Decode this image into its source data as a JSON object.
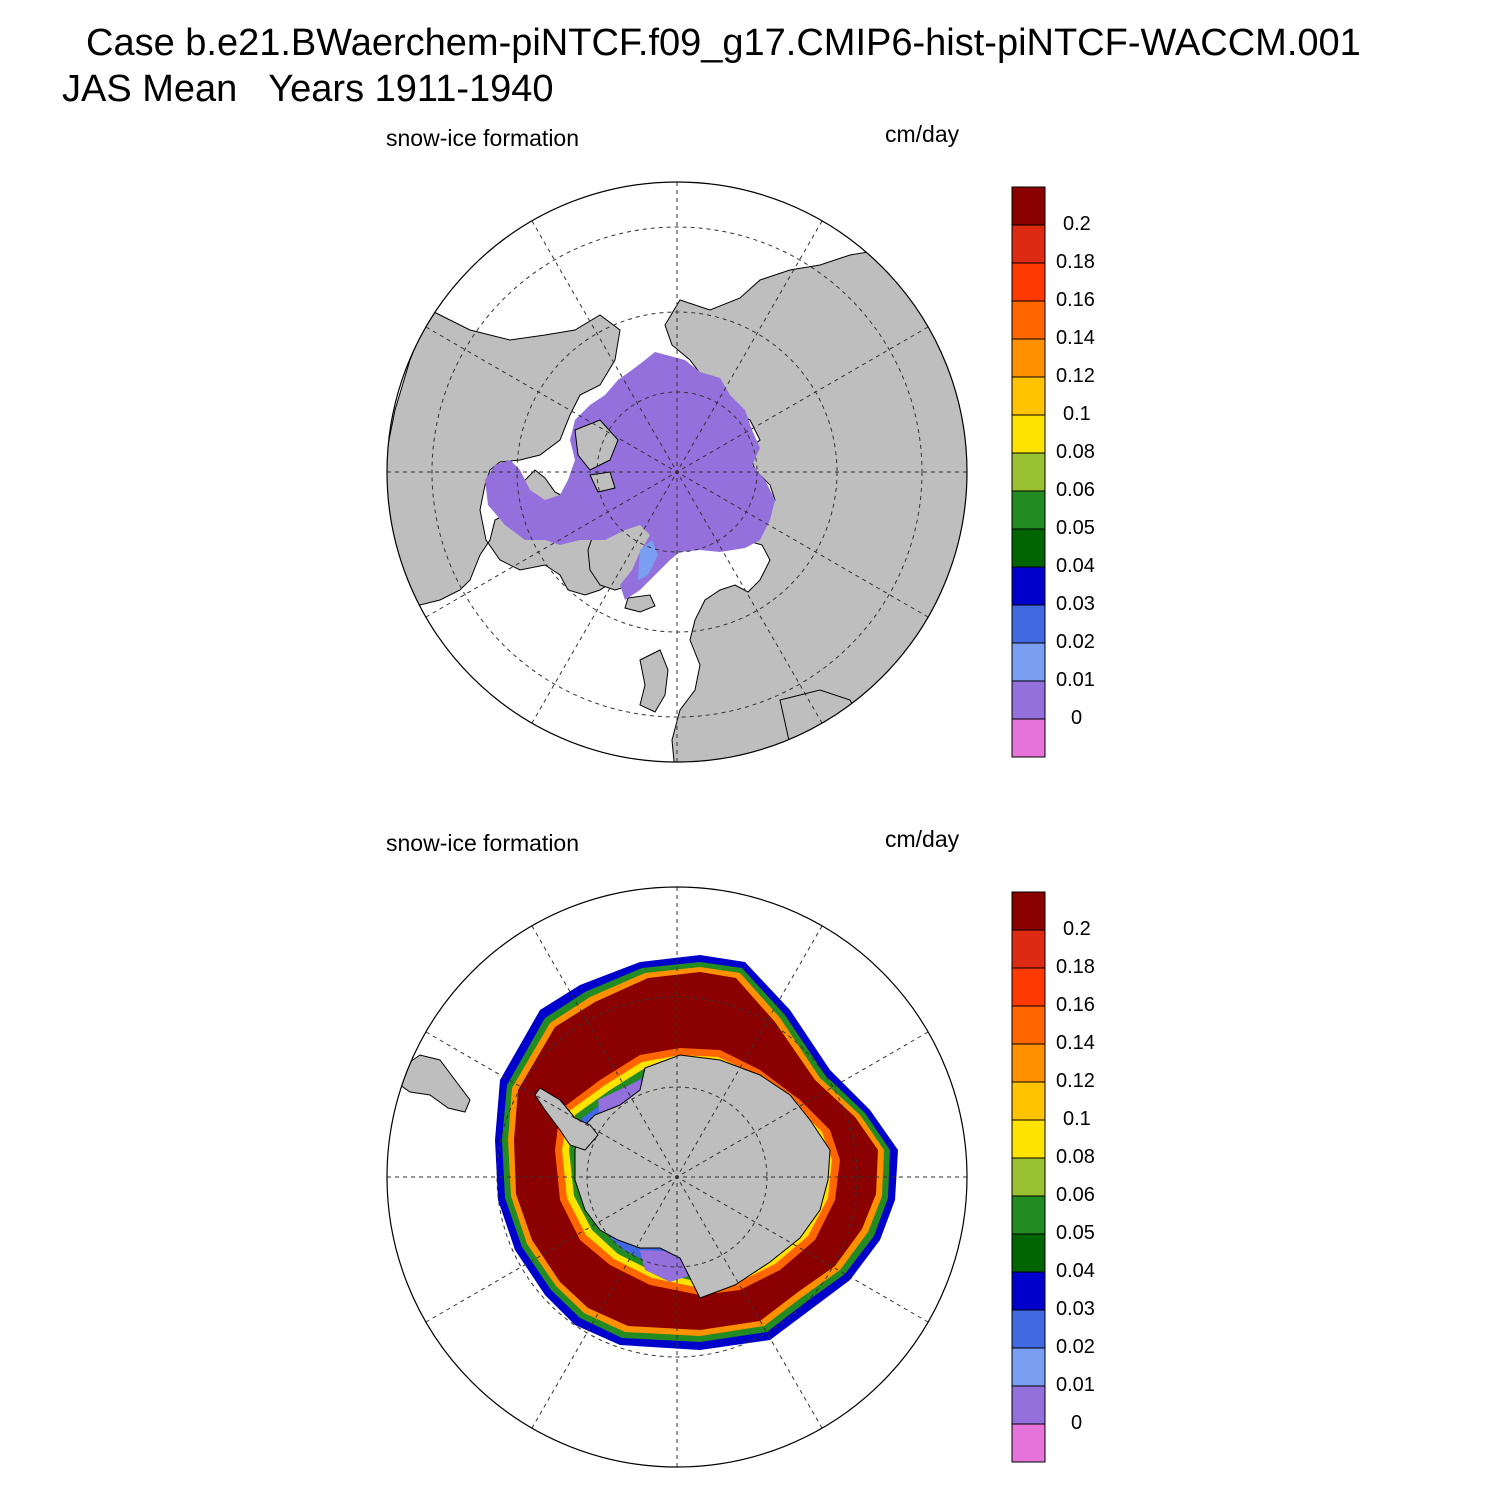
{
  "title": {
    "line1": "Case b.e21.BWaerchem-piNTCF.f09_g17.CMIP6-hist-piNTCF-WACCM.001",
    "line2": "JAS Mean   Years 1911-1940"
  },
  "panels": [
    {
      "hemisphere": "north",
      "variable_label": "snow-ice formation",
      "units_label": "cm/day",
      "projection": "polar stereographic",
      "field_summary": "uniform 0 to 0.01 cm/day over Arctic sea-ice pack"
    },
    {
      "hemisphere": "south",
      "variable_label": "snow-ice formation",
      "units_label": "cm/day",
      "projection": "polar stereographic",
      "field_summary": "band of >0.2 cm/day ringing Antarctica, decreasing toward ice edge and coast"
    }
  ],
  "colorbar": {
    "levels": [
      "0.2",
      "0.18",
      "0.16",
      "0.14",
      "0.12",
      "0.1",
      "0.08",
      "0.06",
      "0.05",
      "0.04",
      "0.03",
      "0.02",
      "0.01",
      "0"
    ],
    "colors_top_to_bottom": [
      "#8b0000",
      "#dd2a12",
      "#ff3a00",
      "#ff6600",
      "#ff9100",
      "#ffc300",
      "#ffe300",
      "#9ac131",
      "#228b22",
      "#006400",
      "#0000cd",
      "#4169e1",
      "#7a9ef2",
      "#9370db",
      "#e673d9"
    ]
  },
  "colors": {
    "land": "#bebebe",
    "ocean": "#ffffff",
    "grid": "#000000"
  }
}
